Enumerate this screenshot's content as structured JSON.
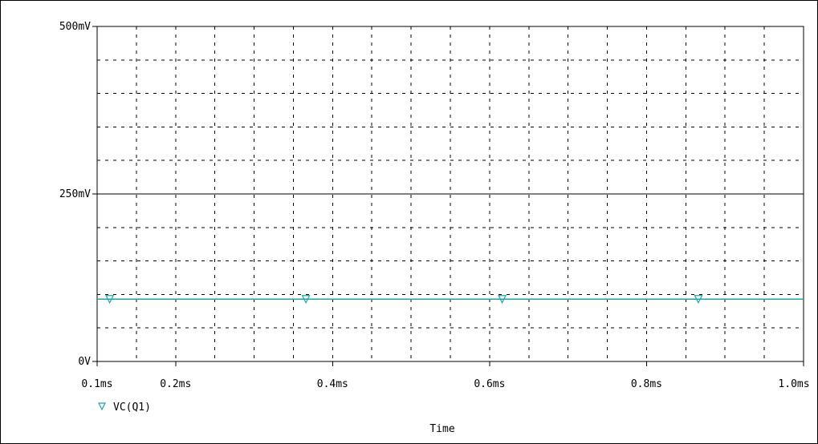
{
  "chart_data": {
    "type": "line",
    "xlabel": "Time",
    "ylabel": "",
    "xlim": [
      0.1,
      1.0
    ],
    "ylim": [
      0,
      500
    ],
    "x_unit": "ms",
    "y_unit": "mV",
    "x_ticks": [
      {
        "value": 0.1,
        "label": "0.1ms"
      },
      {
        "value": 0.2,
        "label": "0.2ms"
      },
      {
        "value": 0.4,
        "label": "0.4ms"
      },
      {
        "value": 0.6,
        "label": "0.6ms"
      },
      {
        "value": 0.8,
        "label": "0.8ms"
      },
      {
        "value": 1.0,
        "label": "1.0ms"
      }
    ],
    "y_ticks": [
      {
        "value": 0,
        "label": "0V"
      },
      {
        "value": 250,
        "label": "250mV"
      },
      {
        "value": 500,
        "label": "500mV"
      }
    ],
    "grid": true,
    "legend": "bottom-left",
    "series": [
      {
        "name": "VC(Q1)",
        "color": "#1fa5a5",
        "marker": "triangle-down",
        "x": [
          0.1,
          1.0
        ],
        "y": [
          93,
          93
        ],
        "marker_x": [
          0.116,
          0.366,
          0.616,
          0.866
        ]
      }
    ]
  },
  "colors": {
    "axis": "#000000",
    "grid": "#000000",
    "background": "#ffffff"
  }
}
